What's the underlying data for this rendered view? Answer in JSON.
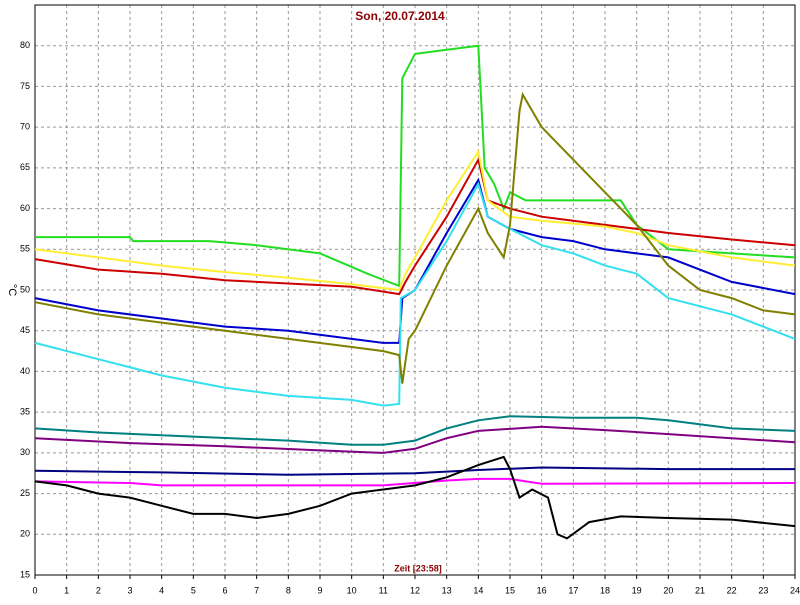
{
  "chart_data": {
    "type": "line",
    "title": "Son, 20.07.2014",
    "y_label": "°C",
    "x_label": "Zeit [23:58]",
    "xlim": [
      0,
      24
    ],
    "xticks": [
      0,
      1,
      2,
      3,
      4,
      5,
      6,
      7,
      8,
      9,
      10,
      11,
      12,
      13,
      14,
      15,
      16,
      17,
      18,
      19,
      20,
      21,
      22,
      23,
      24
    ],
    "ylim": [
      15,
      85
    ],
    "yticks": [
      15,
      20,
      25,
      30,
      35,
      40,
      45,
      50,
      55,
      60,
      65,
      70,
      75,
      80
    ],
    "grid": true,
    "series": [
      {
        "color": "#22dd22",
        "x": [
          0,
          3,
          3.1,
          5.5,
          7,
          9,
          10.5,
          11.5,
          11.6,
          12,
          13,
          14,
          14.2,
          14.5,
          14.8,
          15,
          15.5,
          17,
          18.5,
          19,
          20,
          22,
          24
        ],
        "values": [
          56.5,
          56.5,
          56,
          56,
          55.5,
          54.5,
          52,
          50.5,
          76,
          79,
          79.5,
          80,
          65,
          63,
          60,
          62,
          61,
          61,
          61,
          58,
          55,
          54.5,
          54
        ]
      },
      {
        "color": "#cc0000",
        "x": [
          0,
          2,
          4,
          6,
          8,
          10,
          11.5,
          11.7,
          12,
          13,
          14,
          14.3,
          15,
          16,
          17,
          18,
          19,
          20,
          22,
          24
        ],
        "values": [
          53.8,
          52.5,
          52,
          51.2,
          50.8,
          50.4,
          49.5,
          51,
          53,
          59,
          66,
          61,
          60,
          59,
          58.5,
          58,
          57.5,
          57,
          56.2,
          55.5
        ]
      },
      {
        "color": "#ffee33",
        "x": [
          0,
          2,
          4,
          6,
          8,
          10,
          11.5,
          11.7,
          12,
          13,
          14,
          14.3,
          15,
          16,
          18,
          19,
          20,
          22,
          24
        ],
        "values": [
          55,
          54,
          53,
          52.2,
          51.5,
          50.7,
          50,
          52,
          54,
          61,
          67,
          61,
          59,
          58.5,
          57.8,
          57,
          55.5,
          54,
          53
        ]
      },
      {
        "color": "#0000cc",
        "x": [
          0,
          2,
          4,
          6,
          8,
          10,
          11,
          11.5,
          11.6,
          12,
          13,
          14,
          14.3,
          15,
          16,
          17,
          18,
          19,
          20,
          22,
          24
        ],
        "values": [
          49,
          47.5,
          46.5,
          45.5,
          45,
          44,
          43.5,
          43.5,
          49,
          50,
          57,
          63.5,
          59,
          57.5,
          56.5,
          56,
          55,
          54.5,
          54,
          51,
          49.5
        ]
      },
      {
        "color": "#33e0ee",
        "x": [
          0,
          2,
          4,
          6,
          8,
          10,
          11,
          11.5,
          11.55,
          12,
          13,
          14,
          14.3,
          15,
          16,
          17,
          18,
          19,
          20,
          22,
          24
        ],
        "values": [
          43.5,
          41.5,
          39.5,
          38,
          37,
          36.5,
          35.8,
          36,
          49,
          50,
          56,
          63,
          59,
          57.5,
          55.5,
          54.5,
          53,
          52,
          49,
          47,
          44
        ]
      },
      {
        "color": "#808000",
        "x": [
          0,
          2,
          4,
          6,
          8,
          10,
          11,
          11.5,
          11.6,
          11.8,
          12,
          13,
          14,
          14.3,
          14.8,
          15,
          15.3,
          15.4,
          16,
          17,
          18,
          19,
          20,
          21,
          22,
          23,
          24
        ],
        "values": [
          48.5,
          47,
          46,
          45,
          44,
          43,
          42.5,
          42,
          38.5,
          44,
          45,
          53,
          60,
          57,
          54,
          58,
          72,
          74,
          70,
          66,
          62,
          58,
          53,
          50,
          49,
          47.5,
          47
        ]
      },
      {
        "color": "#008080",
        "x": [
          0,
          2,
          5,
          8,
          10,
          11,
          12,
          13,
          14,
          15,
          17,
          19,
          20,
          22,
          24
        ],
        "values": [
          33,
          32.5,
          32,
          31.5,
          31,
          31,
          31.5,
          33,
          34,
          34.5,
          34.3,
          34.3,
          34,
          33,
          32.7
        ]
      },
      {
        "color": "#800080",
        "x": [
          0,
          3,
          6,
          9,
          11,
          12,
          13,
          14,
          16,
          18,
          20,
          22,
          24
        ],
        "values": [
          31.8,
          31.2,
          30.8,
          30.3,
          30,
          30.5,
          31.8,
          32.7,
          33.2,
          32.8,
          32.3,
          31.8,
          31.3
        ]
      },
      {
        "color": "#000080",
        "x": [
          0,
          4,
          8,
          12,
          14,
          16,
          20,
          24
        ],
        "values": [
          27.8,
          27.6,
          27.3,
          27.5,
          27.9,
          28.2,
          28,
          28
        ]
      },
      {
        "color": "#ff00ff",
        "x": [
          0,
          3,
          4,
          11,
          13,
          14,
          15,
          15.5,
          16,
          24
        ],
        "values": [
          26.5,
          26.3,
          26,
          26,
          26.6,
          26.8,
          26.8,
          26.5,
          26.2,
          26.3
        ]
      },
      {
        "color": "#000000",
        "x": [
          0,
          1,
          2,
          3,
          4,
          5,
          6,
          7,
          8,
          9,
          10,
          11,
          12,
          13,
          14,
          14.8,
          15,
          15.3,
          15.7,
          16.2,
          16.5,
          16.8,
          17.5,
          18.5,
          20,
          22,
          24
        ],
        "values": [
          26.5,
          26,
          25,
          24.5,
          23.5,
          22.5,
          22.5,
          22,
          22.5,
          23.5,
          25,
          25.5,
          26,
          27,
          28.5,
          29.5,
          28,
          24.5,
          25.5,
          24.5,
          20,
          19.5,
          21.5,
          22.2,
          22,
          21.8,
          21
        ]
      }
    ]
  }
}
